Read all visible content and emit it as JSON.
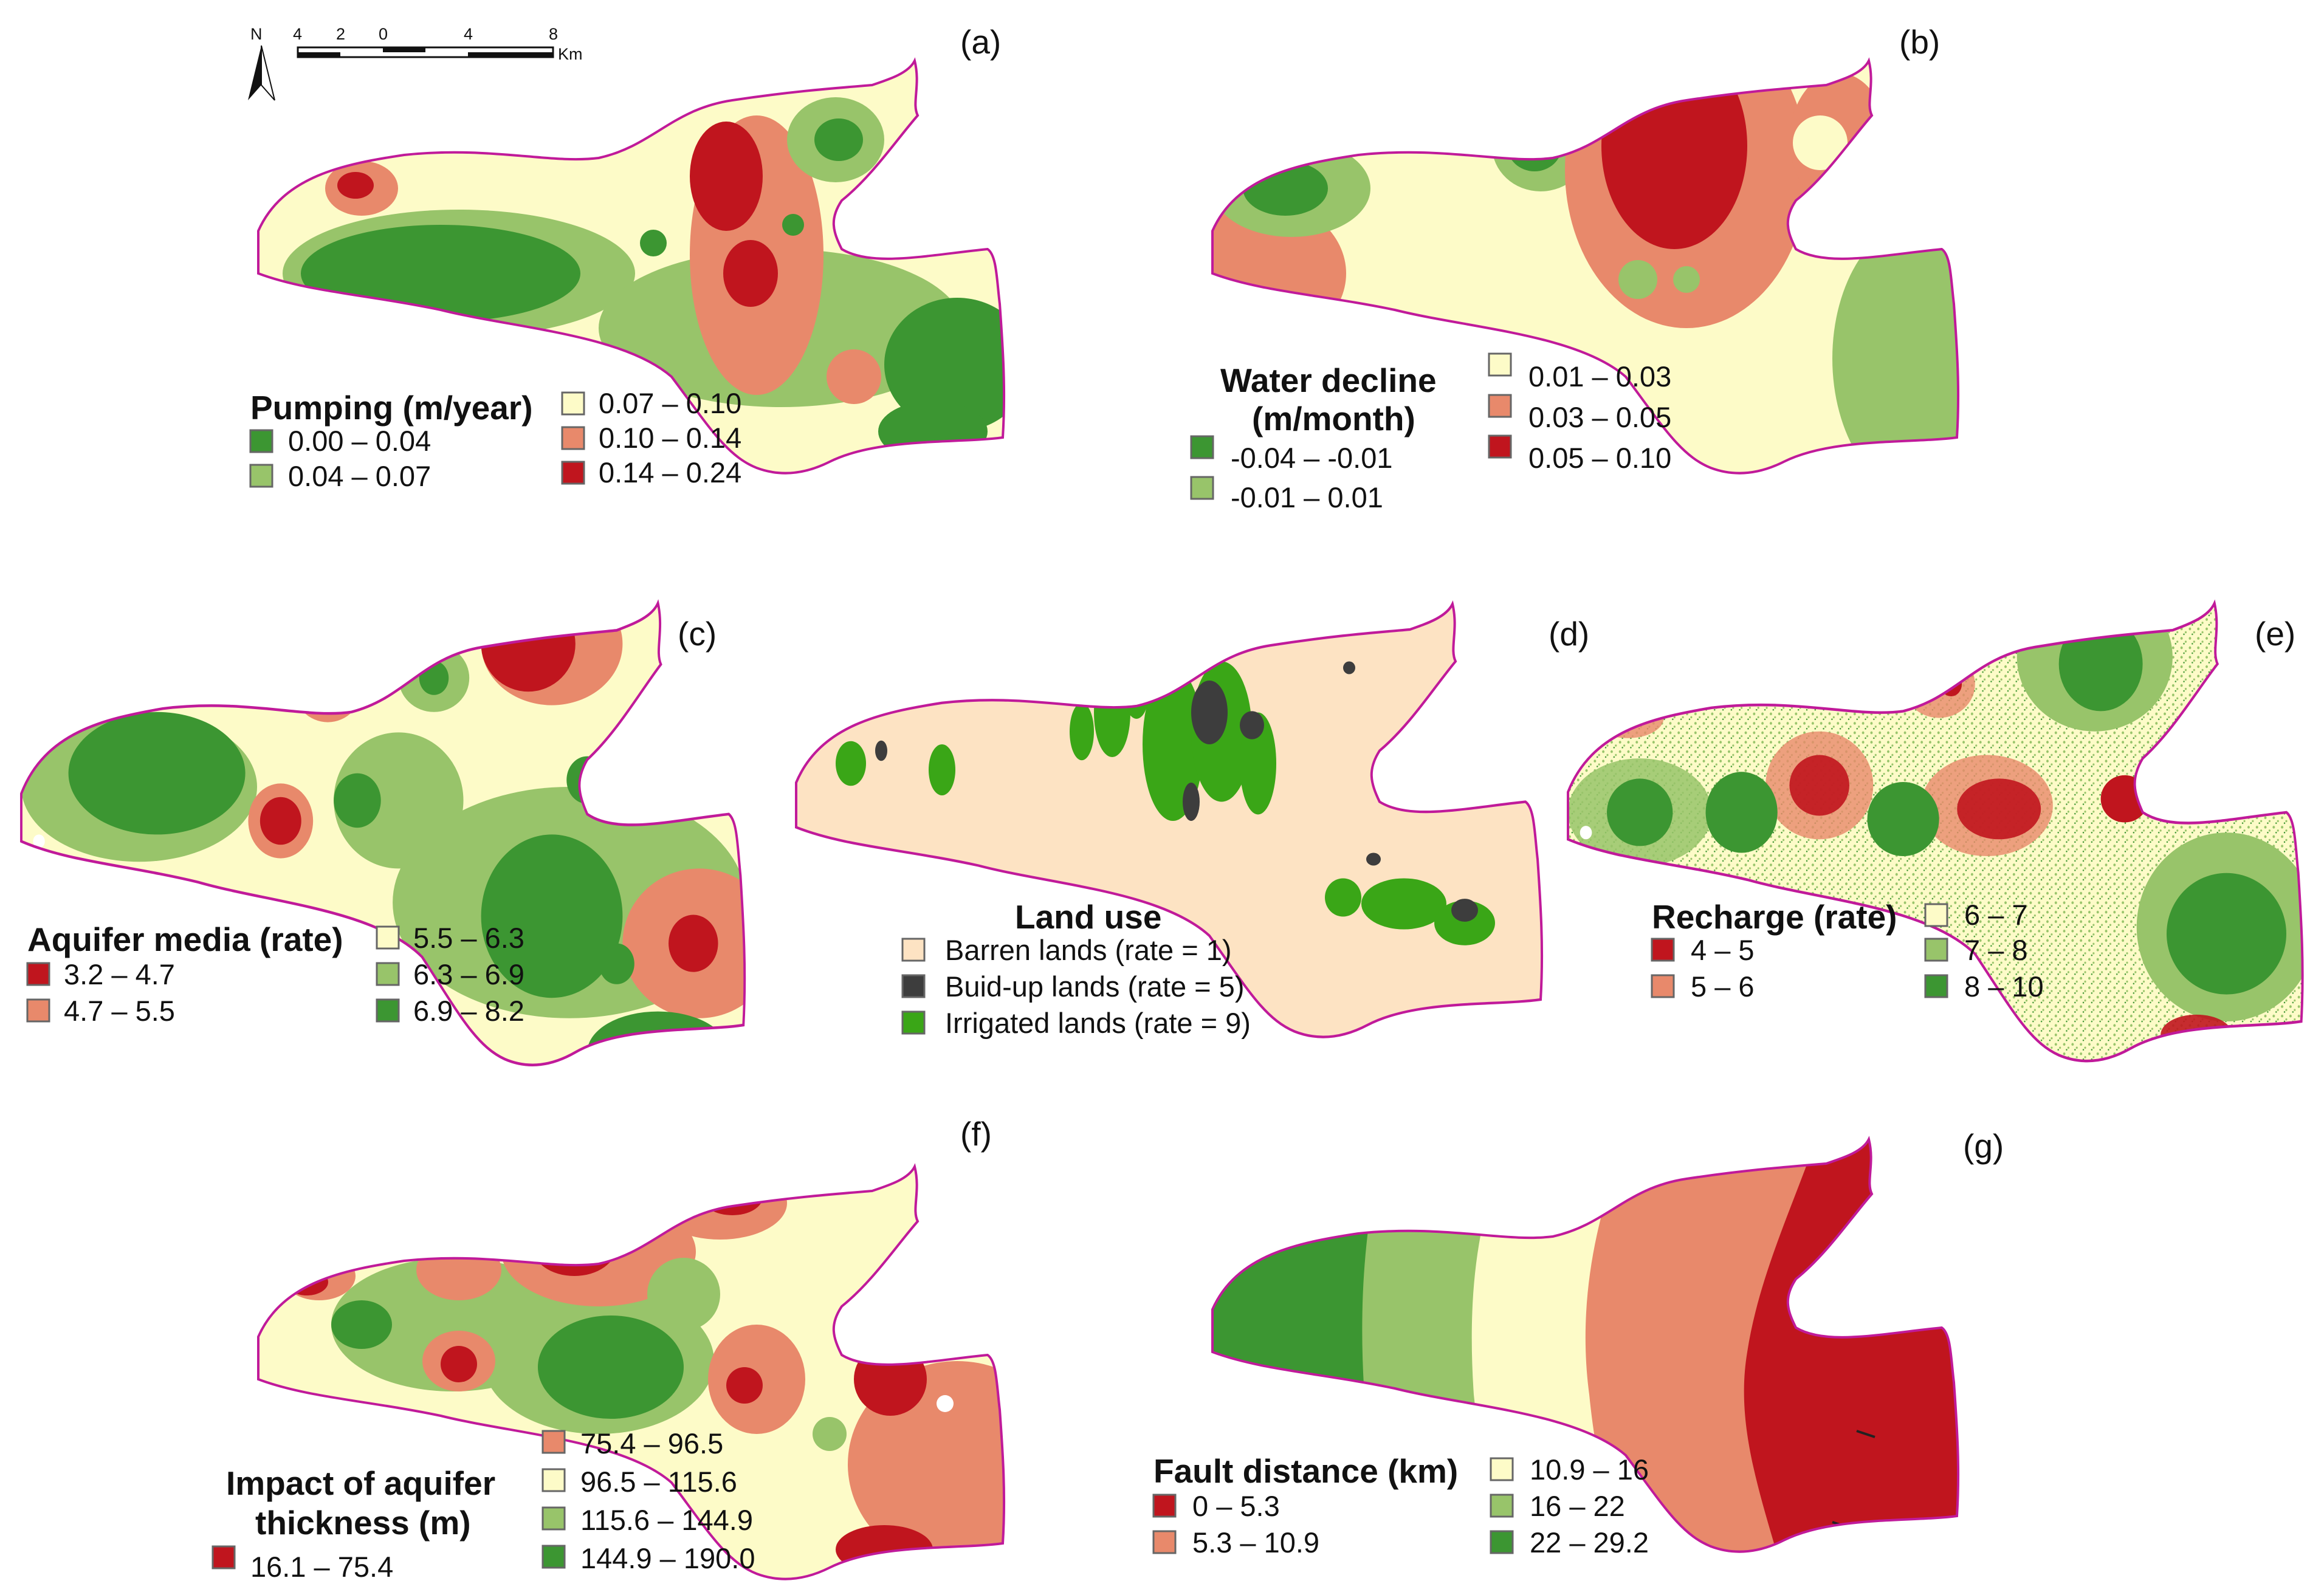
{
  "scale_bar": {
    "north": "N",
    "ticks": [
      "4",
      "2",
      "0",
      "4",
      "8"
    ],
    "unit": "Km"
  },
  "colors": {
    "dark_green": "#3c9632",
    "light_green": "#98c46a",
    "pale_yellow": "#fdfbc8",
    "salmon": "#e8896b",
    "dark_red": "#c0151e",
    "barren": "#fde3c3",
    "buildup": "#3d3d3d",
    "irrigated": "#3aa617",
    "boundary": "#c01a9a"
  },
  "panels": [
    {
      "label": "(a)",
      "title": "Pumping (m/year)",
      "classes": [
        "0.00 – 0.04",
        "0.04 – 0.07",
        "0.07 – 0.10",
        "0.10 – 0.14",
        "0.14 – 0.24"
      ]
    },
    {
      "label": "(b)",
      "title_lines": [
        "Water decline",
        "(m/month)"
      ],
      "classes": [
        "-0.04 – -0.01",
        "-0.01 – 0.01",
        "0.01 – 0.03",
        "0.03 – 0.05",
        "0.05 – 0.10"
      ]
    },
    {
      "label": "(c)",
      "title": "Aquifer media (rate)",
      "classes": [
        "3.2 – 4.7",
        "4.7 – 5.5",
        "5.5 – 6.3",
        "6.3 – 6.9",
        "6.9 – 8.2"
      ]
    },
    {
      "label": "(d)",
      "title": "Land use",
      "classes": [
        "Barren lands (rate = 1)",
        "Buid-up lands (rate = 5)",
        "Irrigated lands (rate = 9)"
      ]
    },
    {
      "label": "(e)",
      "title": "Recharge (rate)",
      "classes": [
        "4 – 5",
        "5 – 6",
        "6 – 7",
        "7 – 8",
        "8 – 10"
      ]
    },
    {
      "label": "(f)",
      "title_lines": [
        "Impact of aquifer",
        "thickness (m)"
      ],
      "classes": [
        "16.1 – 75.4",
        "75.4 – 96.5",
        "96.5 – 115.6",
        "115.6 – 144.9",
        "144.9 – 190.0"
      ]
    },
    {
      "label": "(g)",
      "title": "Fault distance (km)",
      "classes": [
        "0 – 5.3",
        "5.3 – 10.9",
        "10.9 – 16",
        "16 – 22",
        "22 – 29.2"
      ]
    }
  ]
}
